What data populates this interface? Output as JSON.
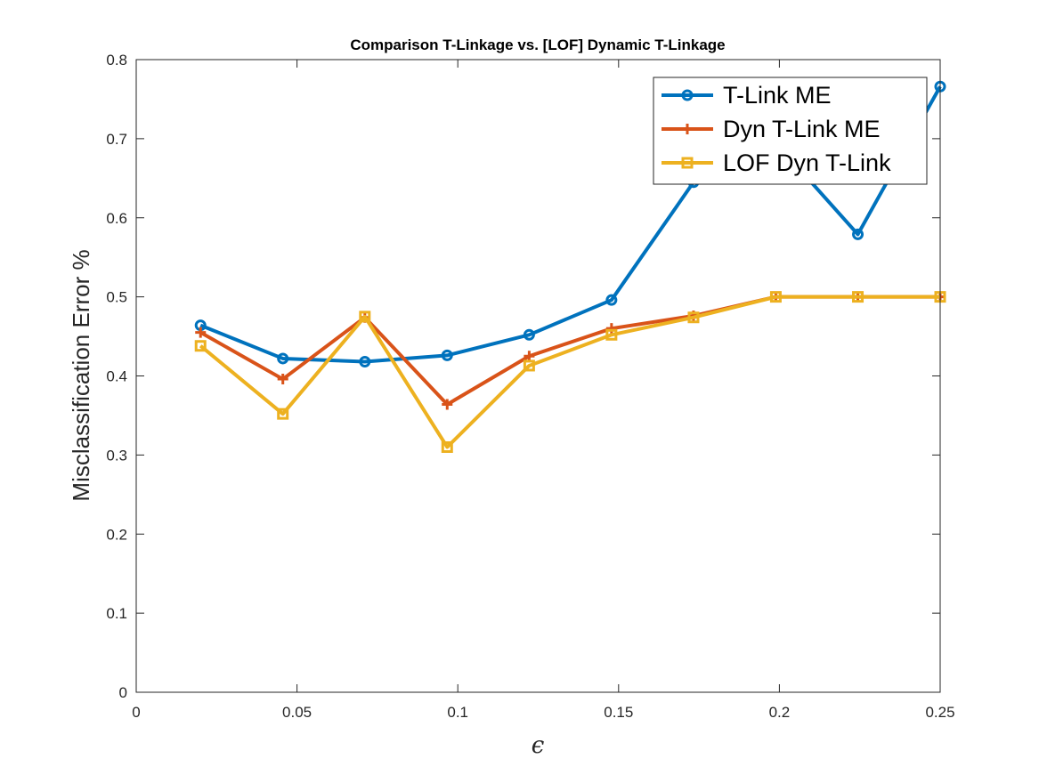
{
  "chart_data": {
    "type": "line",
    "title": "Comparison T-Linkage vs. [LOF] Dynamic T-Linkage",
    "xlabel": "ϵ",
    "ylabel": "Misclassification Error %",
    "xlim": [
      0,
      0.25
    ],
    "ylim": [
      0,
      0.8
    ],
    "xticks": [
      0,
      0.05,
      0.1,
      0.15,
      0.2,
      0.25
    ],
    "xtick_labels": [
      "0",
      "0.05",
      "0.1",
      "0.15",
      "0.2",
      "0.25"
    ],
    "yticks": [
      0,
      0.1,
      0.2,
      0.3,
      0.4,
      0.5,
      0.6,
      0.7,
      0.8
    ],
    "ytick_labels": [
      "0",
      "0.1",
      "0.2",
      "0.3",
      "0.4",
      "0.5",
      "0.6",
      "0.7",
      "0.8"
    ],
    "grid": false,
    "legend_position": "top-right",
    "x": [
      0.02,
      0.0456,
      0.0711,
      0.0967,
      0.1222,
      0.1478,
      0.1733,
      0.1989,
      0.2244,
      0.25
    ],
    "series": [
      {
        "name": "T-Link ME",
        "color": "#0072BD",
        "marker": "circle",
        "values": [
          0.464,
          0.422,
          0.418,
          0.426,
          0.452,
          0.496,
          0.645,
          0.695,
          0.579,
          0.766
        ]
      },
      {
        "name": "Dyn T-Link ME",
        "color": "#D95319",
        "marker": "plus",
        "values": [
          0.455,
          0.396,
          0.474,
          0.364,
          0.425,
          0.46,
          0.476,
          0.5,
          0.5,
          0.5
        ]
      },
      {
        "name": "LOF Dyn T-Link",
        "color": "#EDB120",
        "marker": "square",
        "values": [
          0.438,
          0.352,
          0.475,
          0.31,
          0.413,
          0.452,
          0.474,
          0.5,
          0.5,
          0.5
        ]
      }
    ]
  }
}
